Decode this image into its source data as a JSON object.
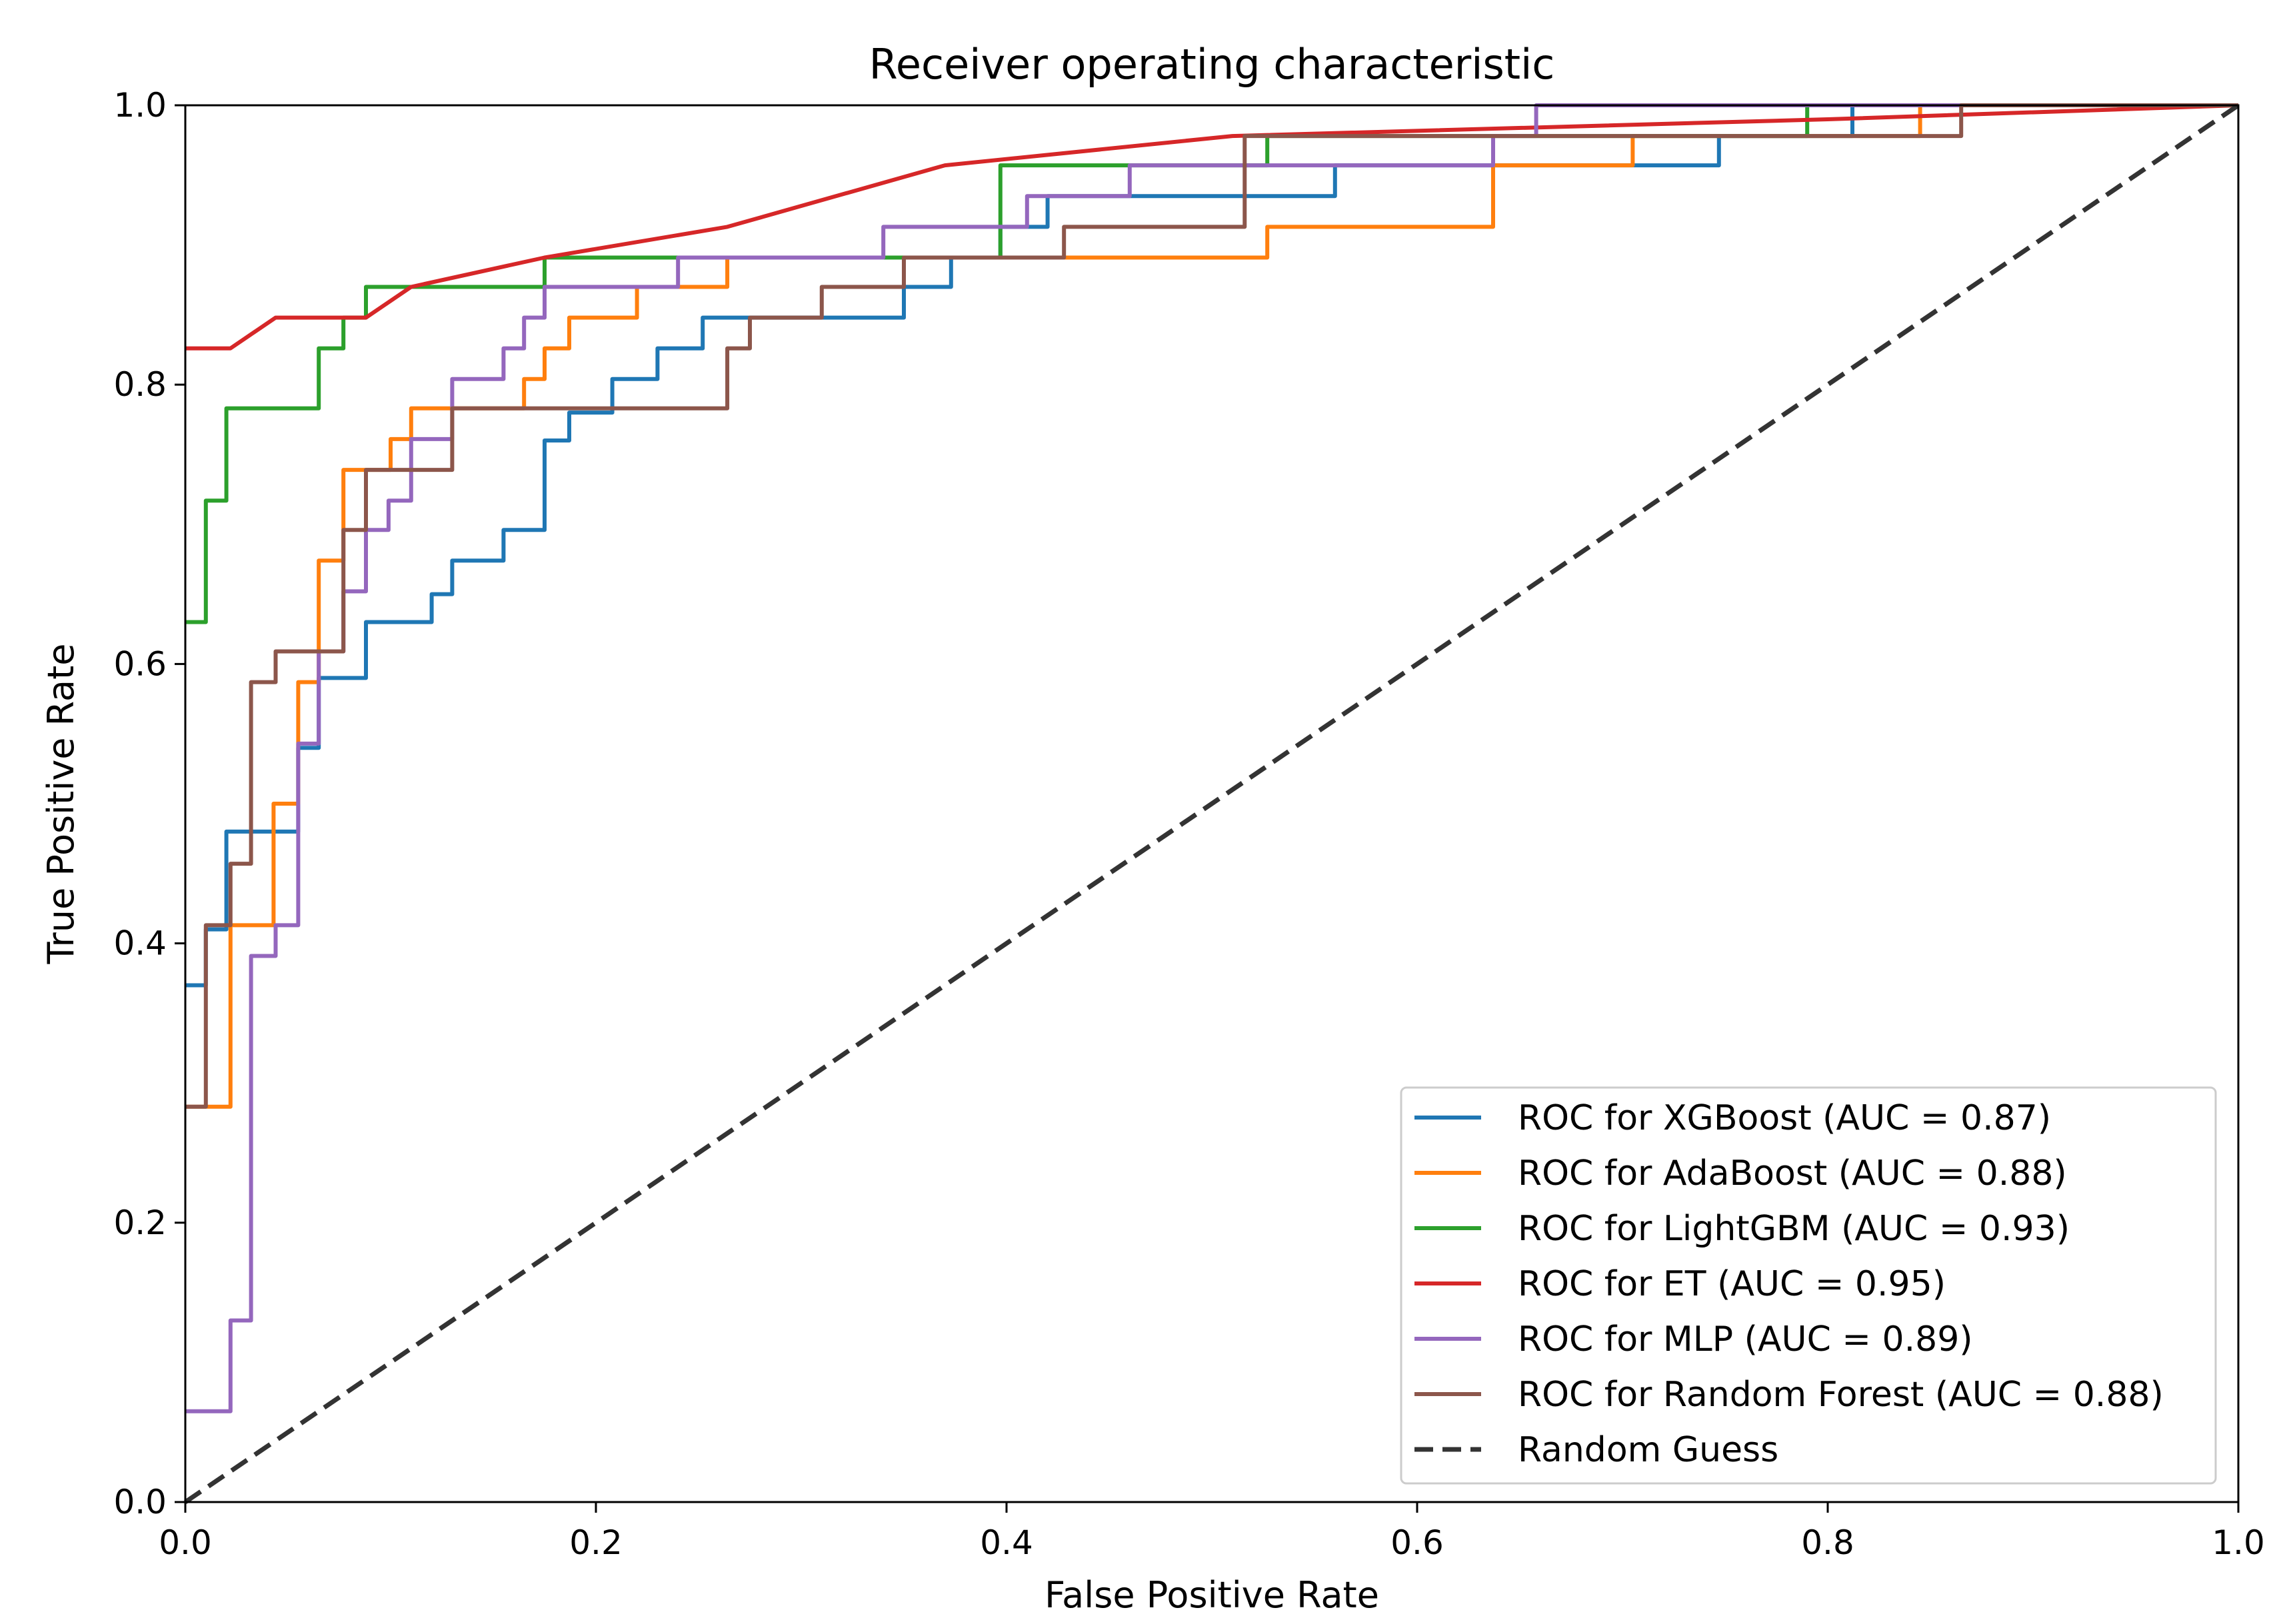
{
  "chart_data": {
    "type": "line",
    "title": "Receiver operating characteristic",
    "xlabel": "False Positive Rate",
    "ylabel": "True Positive Rate",
    "xlim": [
      0.0,
      1.0
    ],
    "ylim": [
      0.0,
      1.0
    ],
    "xticks": [
      0.0,
      0.2,
      0.4,
      0.6,
      0.8,
      1.0
    ],
    "yticks": [
      0.0,
      0.2,
      0.4,
      0.6,
      0.8,
      1.0
    ],
    "xtick_labels": [
      "0.0",
      "0.2",
      "0.4",
      "0.6",
      "0.8",
      "1.0"
    ],
    "ytick_labels": [
      "0.0",
      "0.2",
      "0.4",
      "0.6",
      "0.8",
      "1.0"
    ],
    "grid": false,
    "legend_position": "lower-right",
    "series": [
      {
        "name": "ROC for XGBoost (AUC = 0.87)",
        "color": "#1f77b4",
        "dashed": false,
        "points": [
          [
            0,
            0.37
          ],
          [
            0.01,
            0.37
          ],
          [
            0.01,
            0.41
          ],
          [
            0.02,
            0.41
          ],
          [
            0.02,
            0.48
          ],
          [
            0.055,
            0.48
          ],
          [
            0.055,
            0.54
          ],
          [
            0.065,
            0.54
          ],
          [
            0.065,
            0.59
          ],
          [
            0.088,
            0.59
          ],
          [
            0.088,
            0.63
          ],
          [
            0.12,
            0.63
          ],
          [
            0.12,
            0.65
          ],
          [
            0.13,
            0.65
          ],
          [
            0.13,
            0.674
          ],
          [
            0.155,
            0.674
          ],
          [
            0.155,
            0.696
          ],
          [
            0.175,
            0.696
          ],
          [
            0.175,
            0.76
          ],
          [
            0.187,
            0.76
          ],
          [
            0.187,
            0.78
          ],
          [
            0.208,
            0.78
          ],
          [
            0.208,
            0.804
          ],
          [
            0.23,
            0.804
          ],
          [
            0.23,
            0.826
          ],
          [
            0.252,
            0.826
          ],
          [
            0.252,
            0.848
          ],
          [
            0.35,
            0.848
          ],
          [
            0.35,
            0.87
          ],
          [
            0.373,
            0.87
          ],
          [
            0.373,
            0.891
          ],
          [
            0.397,
            0.891
          ],
          [
            0.397,
            0.913
          ],
          [
            0.42,
            0.913
          ],
          [
            0.42,
            0.935
          ],
          [
            0.56,
            0.935
          ],
          [
            0.56,
            0.957
          ],
          [
            0.747,
            0.957
          ],
          [
            0.747,
            0.978
          ],
          [
            0.812,
            0.978
          ],
          [
            0.812,
            1.0
          ],
          [
            1.0,
            1.0
          ]
        ]
      },
      {
        "name": "ROC for AdaBoost (AUC = 0.88)",
        "color": "#ff7f0e",
        "dashed": false,
        "points": [
          [
            0,
            0.283
          ],
          [
            0.022,
            0.283
          ],
          [
            0.022,
            0.413
          ],
          [
            0.043,
            0.413
          ],
          [
            0.043,
            0.5
          ],
          [
            0.055,
            0.5
          ],
          [
            0.055,
            0.587
          ],
          [
            0.065,
            0.587
          ],
          [
            0.065,
            0.674
          ],
          [
            0.077,
            0.674
          ],
          [
            0.077,
            0.739
          ],
          [
            0.1,
            0.739
          ],
          [
            0.1,
            0.761
          ],
          [
            0.11,
            0.761
          ],
          [
            0.11,
            0.783
          ],
          [
            0.165,
            0.783
          ],
          [
            0.165,
            0.804
          ],
          [
            0.175,
            0.804
          ],
          [
            0.175,
            0.826
          ],
          [
            0.187,
            0.826
          ],
          [
            0.187,
            0.848
          ],
          [
            0.22,
            0.848
          ],
          [
            0.22,
            0.87
          ],
          [
            0.264,
            0.87
          ],
          [
            0.264,
            0.891
          ],
          [
            0.42,
            0.891
          ],
          [
            0.42,
            0.891
          ],
          [
            0.527,
            0.891
          ],
          [
            0.527,
            0.913
          ],
          [
            0.637,
            0.913
          ],
          [
            0.637,
            0.957
          ],
          [
            0.705,
            0.957
          ],
          [
            0.705,
            0.978
          ],
          [
            0.845,
            0.978
          ],
          [
            0.845,
            1.0
          ],
          [
            1.0,
            1.0
          ]
        ]
      },
      {
        "name": "ROC for LightGBM (AUC = 0.93)",
        "color": "#2ca02c",
        "dashed": false,
        "points": [
          [
            0,
            0.63
          ],
          [
            0.01,
            0.63
          ],
          [
            0.01,
            0.717
          ],
          [
            0.02,
            0.717
          ],
          [
            0.02,
            0.783
          ],
          [
            0.065,
            0.783
          ],
          [
            0.065,
            0.826
          ],
          [
            0.077,
            0.826
          ],
          [
            0.077,
            0.848
          ],
          [
            0.088,
            0.848
          ],
          [
            0.088,
            0.87
          ],
          [
            0.175,
            0.87
          ],
          [
            0.175,
            0.891
          ],
          [
            0.24,
            0.891
          ],
          [
            0.24,
            0.891
          ],
          [
            0.397,
            0.891
          ],
          [
            0.397,
            0.957
          ],
          [
            0.527,
            0.957
          ],
          [
            0.527,
            0.978
          ],
          [
            0.79,
            0.978
          ],
          [
            0.79,
            1.0
          ],
          [
            1.0,
            1.0
          ]
        ]
      },
      {
        "name": "ROC for ET (AUC = 0.95)",
        "color": "#d62728",
        "dashed": false,
        "points": [
          [
            0,
            0.826
          ],
          [
            0.022,
            0.826
          ],
          [
            0.044,
            0.848
          ],
          [
            0.088,
            0.848
          ],
          [
            0.11,
            0.87
          ],
          [
            0.175,
            0.891
          ],
          [
            0.264,
            0.913
          ],
          [
            0.37,
            0.957
          ],
          [
            0.51,
            0.978
          ],
          [
            0.8,
            0.99
          ],
          [
            1.0,
            1.0
          ]
        ]
      },
      {
        "name": "ROC for MLP (AUC = 0.89)",
        "color": "#9467bd",
        "dashed": false,
        "points": [
          [
            0,
            0.065
          ],
          [
            0.022,
            0.065
          ],
          [
            0.022,
            0.13
          ],
          [
            0.032,
            0.13
          ],
          [
            0.032,
            0.391
          ],
          [
            0.044,
            0.391
          ],
          [
            0.044,
            0.413
          ],
          [
            0.055,
            0.413
          ],
          [
            0.055,
            0.543
          ],
          [
            0.065,
            0.543
          ],
          [
            0.065,
            0.609
          ],
          [
            0.077,
            0.609
          ],
          [
            0.077,
            0.652
          ],
          [
            0.088,
            0.652
          ],
          [
            0.088,
            0.696
          ],
          [
            0.099,
            0.696
          ],
          [
            0.099,
            0.717
          ],
          [
            0.11,
            0.717
          ],
          [
            0.11,
            0.761
          ],
          [
            0.13,
            0.761
          ],
          [
            0.13,
            0.804
          ],
          [
            0.155,
            0.804
          ],
          [
            0.155,
            0.826
          ],
          [
            0.165,
            0.826
          ],
          [
            0.165,
            0.848
          ],
          [
            0.175,
            0.848
          ],
          [
            0.175,
            0.87
          ],
          [
            0.24,
            0.87
          ],
          [
            0.24,
            0.891
          ],
          [
            0.34,
            0.891
          ],
          [
            0.34,
            0.913
          ],
          [
            0.41,
            0.913
          ],
          [
            0.41,
            0.935
          ],
          [
            0.46,
            0.935
          ],
          [
            0.46,
            0.957
          ],
          [
            0.637,
            0.957
          ],
          [
            0.637,
            0.978
          ],
          [
            0.658,
            0.978
          ],
          [
            0.658,
            1.0
          ],
          [
            1.0,
            1.0
          ]
        ]
      },
      {
        "name": "ROC for Random Forest (AUC = 0.88)",
        "color": "#8c564b",
        "dashed": false,
        "points": [
          [
            0,
            0.283
          ],
          [
            0.01,
            0.283
          ],
          [
            0.01,
            0.413
          ],
          [
            0.022,
            0.413
          ],
          [
            0.022,
            0.457
          ],
          [
            0.032,
            0.457
          ],
          [
            0.032,
            0.587
          ],
          [
            0.044,
            0.587
          ],
          [
            0.044,
            0.609
          ],
          [
            0.077,
            0.609
          ],
          [
            0.077,
            0.696
          ],
          [
            0.088,
            0.696
          ],
          [
            0.088,
            0.739
          ],
          [
            0.13,
            0.739
          ],
          [
            0.13,
            0.783
          ],
          [
            0.264,
            0.783
          ],
          [
            0.264,
            0.826
          ],
          [
            0.275,
            0.826
          ],
          [
            0.275,
            0.848
          ],
          [
            0.31,
            0.848
          ],
          [
            0.31,
            0.87
          ],
          [
            0.35,
            0.87
          ],
          [
            0.35,
            0.891
          ],
          [
            0.428,
            0.891
          ],
          [
            0.428,
            0.913
          ],
          [
            0.516,
            0.913
          ],
          [
            0.516,
            0.978
          ],
          [
            0.865,
            0.978
          ],
          [
            0.865,
            1.0
          ],
          [
            1.0,
            1.0
          ]
        ]
      },
      {
        "name": "Random Guess",
        "color": "#333333",
        "dashed": true,
        "points": [
          [
            0,
            0
          ],
          [
            1,
            1
          ]
        ]
      }
    ]
  }
}
